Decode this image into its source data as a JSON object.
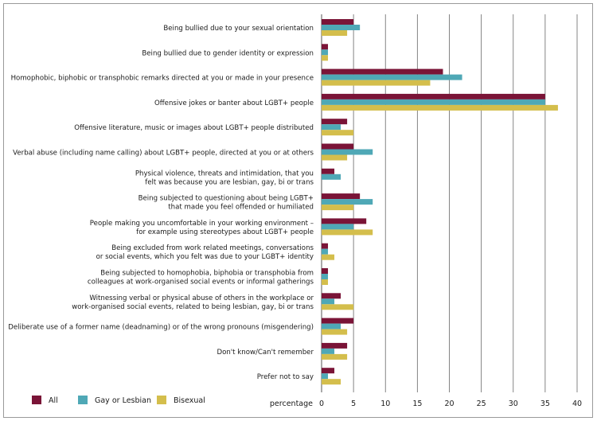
{
  "chart_data": {
    "type": "bar",
    "orientation": "horizontal",
    "categories": [
      [
        "Being  bullied  due to your sexual  orientation"
      ],
      [
        "Being  bullied  due to gender  identity  or expression"
      ],
      [
        "Homophobic, biphobic  or transphobic  remarks  directed  at you  or made  in your presence"
      ],
      [
        "Offensive jokes  or banter about  LGBT+  people"
      ],
      [
        "Offensive literature,  music or images  about  LGBT+ people  distributed"
      ],
      [
        "Verbal abuse  (including  name calling)  about  LGBT+  people,  directed  at you or at others"
      ],
      [
        "Physical violence,  threats  and intimidation,  that you",
        "felt was because  you are lesbian,  gay, bi or trans"
      ],
      [
        "Being  subjected  to questioning  about  being LGBT+",
        "that made  you feel offended  or humiliated"
      ],
      [
        "People making  you uncomfortable  in your working  environment  –",
        "for example  using  stereotypes  about  LGBT+  people"
      ],
      [
        "Being  excluded  from work related  meetings,  conversations",
        "or social  events,  which  you felt was due to your LGBT+  identity"
      ],
      [
        "Being  subjected  to homophobia,  biphobia  or transphobia  from",
        "colleagues  at work-organised  social  events  or informal  gatherings"
      ],
      [
        "Witnessing  verbal  or physical  abuse  of others  in the workplace  or",
        "work-organised  social events,  related  to being  lesbian,  gay, bi or trans"
      ],
      [
        "Deliberate  use of a former name  (deadnaming)  or of the wrong pronouns  (misgendering)"
      ],
      [
        "Don't know/Can't  remember"
      ],
      [
        "Prefer  not to say"
      ]
    ],
    "series": [
      {
        "name": "All",
        "color": "#7a1437",
        "values": [
          5,
          1,
          19,
          35,
          4,
          5,
          2,
          6,
          7,
          1,
          1,
          3,
          5,
          4,
          2
        ]
      },
      {
        "name": "Gay  or Lesbian",
        "color": "#4fa8b6",
        "values": [
          6,
          1,
          22,
          35,
          3,
          8,
          3,
          8,
          5,
          1,
          1,
          2,
          3,
          2,
          1
        ]
      },
      {
        "name": "Bisexual",
        "color": "#d4be4c",
        "values": [
          4,
          1,
          17,
          37,
          5,
          4,
          0,
          5,
          8,
          2,
          1,
          5,
          4,
          4,
          3
        ]
      }
    ],
    "xlabel": "percentage",
    "xlim": [
      0,
      40
    ],
    "xticks": [
      0,
      5,
      10,
      15,
      20,
      25,
      30,
      35,
      40
    ],
    "grid": "vertical",
    "legend": "bottom-left"
  }
}
